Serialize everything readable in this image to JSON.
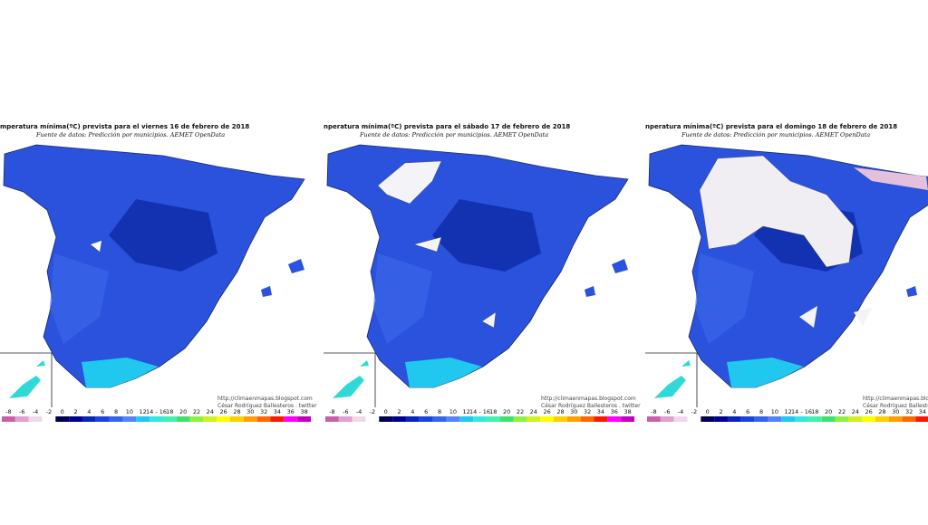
{
  "panels": [
    {
      "title": "mperatura mínima(ºC) prevista para el viernes 16 de febrero de 2018",
      "source": "Fuente de datos: Predicción por municipios. AEMET OpenData",
      "url": "http://climaenmapas.blogspot.com",
      "credit": "César Rodríguez Ballesteros . twitter",
      "scale": [
        "-8",
        "-6",
        "-4",
        "-2",
        "0",
        "2",
        "4",
        "6",
        "8",
        "10",
        "12",
        "14 - 16",
        "18",
        "20",
        "22",
        "24",
        "26",
        "28",
        "30",
        "32",
        "34",
        "36",
        "38"
      ]
    },
    {
      "title": "nperatura mínima(ºC) prevista para el sábado 17 de febrero de 2018",
      "source": "Fuente de datos: Predicción por municipios. AEMET OpenData",
      "url": "http://climaenmapas.blogspot.com",
      "credit": "César Rodríguez Ballesteros . twitter",
      "scale": [
        "-8",
        "-6",
        "-4",
        "-2",
        "0",
        "2",
        "4",
        "6",
        "8",
        "10",
        "12",
        "14 - 16",
        "18",
        "20",
        "22",
        "24",
        "26",
        "28",
        "30",
        "32",
        "34",
        "36",
        "38"
      ]
    },
    {
      "title": "nperatura mínima(ºC) prevista para el domingo 18 de febrero de 2018",
      "source": "Fuente de datos: Predicción por municipios. AEMET OpenData",
      "url": "http://climaenmapas.blogs",
      "credit": "César Rodríguez Ballesteros",
      "scale": [
        "-8",
        "-6",
        "-4",
        "-2",
        "0",
        "2",
        "4",
        "6",
        "8",
        "10",
        "12",
        "14 - 16",
        "18",
        "20",
        "22",
        "24",
        "26",
        "28",
        "30",
        "32",
        "34"
      ]
    }
  ],
  "scale_colors": [
    "#c860a8",
    "#e0a0d0",
    "#f0d8ea",
    "#ffffff",
    "#000050",
    "#000090",
    "#0a24b8",
    "#1a44d8",
    "#3464ec",
    "#5484f4",
    "#20c8f0",
    "#30e8e0",
    "#40f0b0",
    "#40e070",
    "#90f040",
    "#d0f020",
    "#ffff00",
    "#ffd000",
    "#ffa000",
    "#ff6800",
    "#ff1800",
    "#ff00ff",
    "#c000c0"
  ]
}
